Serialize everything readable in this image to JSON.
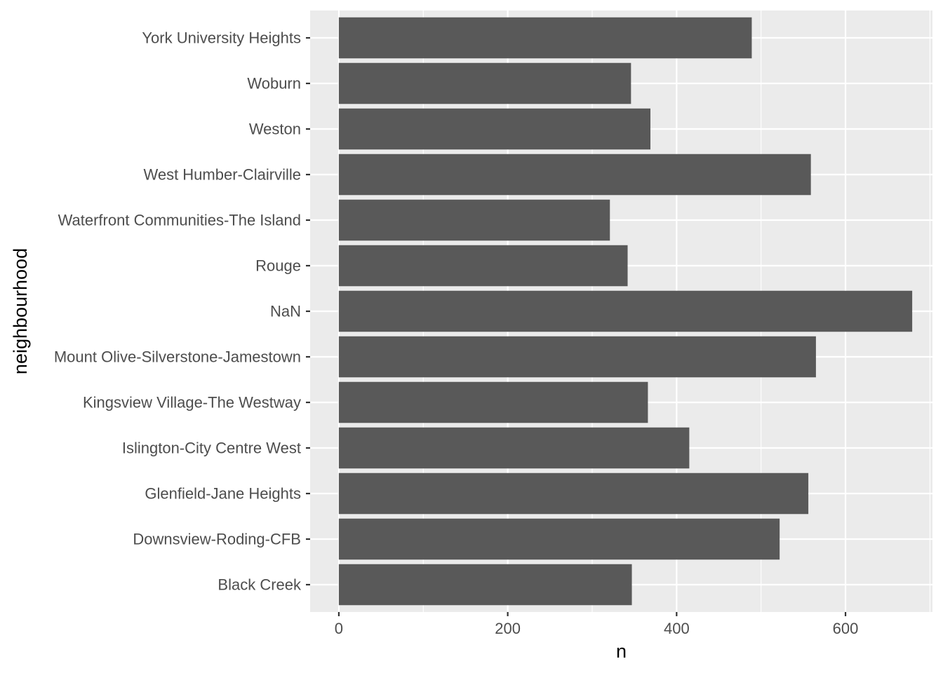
{
  "chart_data": {
    "type": "bar",
    "orientation": "horizontal",
    "categories": [
      "Black Creek",
      "Downsview-Roding-CFB",
      "Glenfield-Jane Heights",
      "Islington-City Centre West",
      "Kingsview Village-The Westway",
      "Mount Olive-Silverstone-Jamestown",
      "NaN",
      "Rouge",
      "Waterfront Communities-The Island",
      "West Humber-Clairville",
      "Weston",
      "Woburn",
      "York University Heights"
    ],
    "values": [
      347,
      522,
      556,
      415,
      366,
      565,
      679,
      342,
      321,
      559,
      369,
      346,
      489
    ],
    "xlabel": "n",
    "ylabel": "neighbourhood",
    "xlim": [
      -34,
      703
    ],
    "xticks": [
      0,
      200,
      400,
      600
    ],
    "xtick_labels": [
      "0",
      "200",
      "400",
      "600"
    ],
    "grid": true,
    "bar_color": "#595959",
    "panel_background": "#ebebeb"
  }
}
